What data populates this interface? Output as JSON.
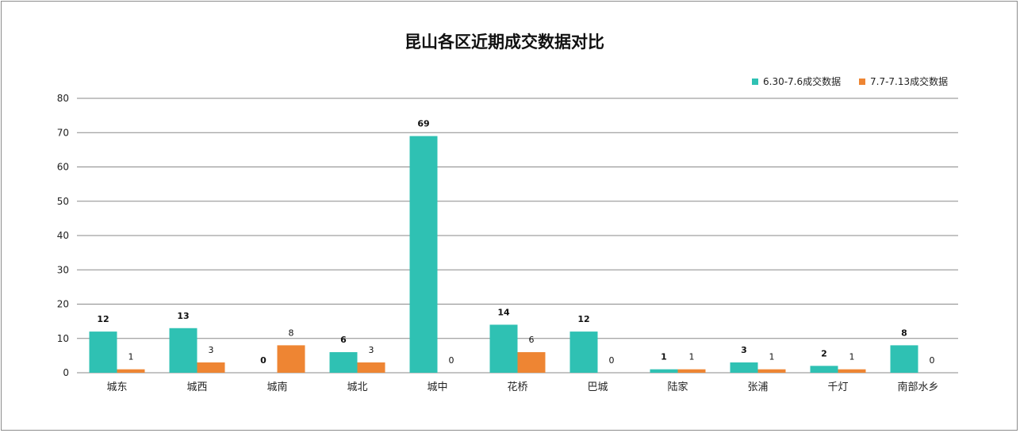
{
  "chart_data": {
    "type": "bar",
    "title": "昆山各区近期成交数据对比",
    "categories": [
      "城东",
      "城西",
      "城南",
      "城北",
      "城中",
      "花桥",
      "巴城",
      "陆家",
      "张浦",
      "千灯",
      "南部水乡"
    ],
    "series": [
      {
        "name": "6.30-7.6成交数据",
        "color": "#2fc1b3",
        "values": [
          12,
          13,
          0,
          6,
          69,
          14,
          12,
          1,
          3,
          2,
          8
        ],
        "label_bold": true
      },
      {
        "name": "7.7-7.13成交数据",
        "color": "#ee8533",
        "values": [
          1,
          3,
          8,
          3,
          0,
          6,
          0,
          1,
          1,
          1,
          0
        ],
        "label_bold": false
      }
    ],
    "ylim": [
      0,
      80
    ],
    "yticks": [
      0,
      10,
      20,
      30,
      40,
      50,
      60,
      70,
      80
    ],
    "xlabel": "",
    "ylabel": "",
    "grid": true,
    "legend": "top-right"
  }
}
